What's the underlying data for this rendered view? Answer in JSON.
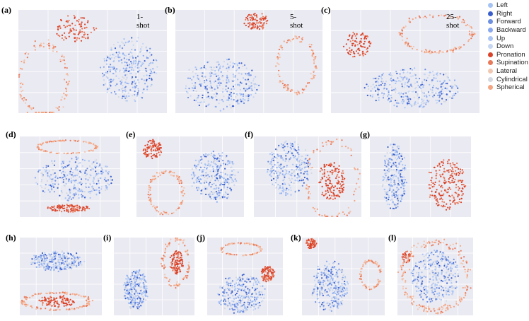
{
  "legend": {
    "items": [
      {
        "label": "Left",
        "color": "#a4c2f4"
      },
      {
        "label": "Right",
        "color": "#3a5fcd"
      },
      {
        "label": "Forward",
        "color": "#6f8fe0"
      },
      {
        "label": "Backward",
        "color": "#8aa8ee"
      },
      {
        "label": "Up",
        "color": "#a9c4f5"
      },
      {
        "label": "Down",
        "color": "#c6d6f2"
      },
      {
        "label": "Pronation",
        "color": "#d9432a"
      },
      {
        "label": "Supination",
        "color": "#e8795a"
      },
      {
        "label": "Lateral",
        "color": "#f2c7b2"
      },
      {
        "label": "Cylindrical",
        "color": "#d4d8e0"
      },
      {
        "label": "Spherical",
        "color": "#f4a582"
      }
    ]
  },
  "chart_data": [
    {
      "type": "scatter",
      "label": "(a)",
      "annotation": "1-shot",
      "clusters": [
        {
          "shape": "blob",
          "cx": 0.75,
          "cy": 0.58,
          "rx": 0.21,
          "ry": 0.33,
          "n": 320,
          "palette": "blue"
        },
        {
          "shape": "blob",
          "cx": 0.38,
          "cy": 0.18,
          "rx": 0.15,
          "ry": 0.14,
          "n": 95,
          "palette": "red"
        },
        {
          "shape": "ring",
          "cx": 0.17,
          "cy": 0.68,
          "rx": 0.16,
          "ry": 0.34,
          "n": 120,
          "palette": "orange",
          "thick": 0.02
        }
      ]
    },
    {
      "type": "scatter",
      "label": "(b)",
      "annotation": "5-shot",
      "clusters": [
        {
          "shape": "blob",
          "cx": 0.31,
          "cy": 0.72,
          "rx": 0.27,
          "ry": 0.26,
          "n": 320,
          "palette": "blue"
        },
        {
          "shape": "blob",
          "cx": 0.55,
          "cy": 0.11,
          "rx": 0.09,
          "ry": 0.09,
          "n": 95,
          "palette": "red"
        },
        {
          "shape": "ring",
          "cx": 0.82,
          "cy": 0.53,
          "rx": 0.13,
          "ry": 0.26,
          "n": 110,
          "palette": "orange",
          "thick": 0.02
        }
      ]
    },
    {
      "type": "scatter",
      "label": "(c)",
      "annotation": "25-shot",
      "clusters": [
        {
          "shape": "blob",
          "cx": 0.56,
          "cy": 0.76,
          "rx": 0.35,
          "ry": 0.2,
          "n": 330,
          "palette": "blue"
        },
        {
          "shape": "blob",
          "cx": 0.18,
          "cy": 0.34,
          "rx": 0.1,
          "ry": 0.13,
          "n": 95,
          "palette": "red"
        },
        {
          "shape": "ring",
          "cx": 0.71,
          "cy": 0.23,
          "rx": 0.24,
          "ry": 0.18,
          "n": 130,
          "palette": "orange",
          "thick": 0.015
        }
      ]
    },
    {
      "type": "scatter",
      "label": "(d)",
      "clusters": [
        {
          "shape": "blob",
          "cx": 0.55,
          "cy": 0.52,
          "rx": 0.42,
          "ry": 0.28,
          "n": 300,
          "palette": "blue"
        },
        {
          "shape": "blob",
          "cx": 0.49,
          "cy": 0.89,
          "rx": 0.23,
          "ry": 0.05,
          "n": 110,
          "palette": "red"
        },
        {
          "shape": "ring",
          "cx": 0.47,
          "cy": 0.13,
          "rx": 0.29,
          "ry": 0.08,
          "n": 110,
          "palette": "orange",
          "thick": 0.012
        }
      ]
    },
    {
      "type": "scatter",
      "label": "(e)",
      "clusters": [
        {
          "shape": "blob",
          "cx": 0.72,
          "cy": 0.5,
          "rx": 0.23,
          "ry": 0.33,
          "n": 300,
          "palette": "blue"
        },
        {
          "shape": "blob",
          "cx": 0.15,
          "cy": 0.16,
          "rx": 0.1,
          "ry": 0.12,
          "n": 90,
          "palette": "red"
        },
        {
          "shape": "ring",
          "cx": 0.28,
          "cy": 0.7,
          "rx": 0.16,
          "ry": 0.26,
          "n": 110,
          "palette": "orange",
          "thick": 0.02
        }
      ]
    },
    {
      "type": "scatter",
      "label": "(f)",
      "clusters": [
        {
          "shape": "blob",
          "cx": 0.33,
          "cy": 0.4,
          "rx": 0.22,
          "ry": 0.36,
          "n": 260,
          "palette": "blue"
        },
        {
          "shape": "blob",
          "cx": 0.73,
          "cy": 0.55,
          "rx": 0.14,
          "ry": 0.25,
          "n": 150,
          "palette": "red"
        },
        {
          "shape": "ring",
          "cx": 0.73,
          "cy": 0.55,
          "rx": 0.24,
          "ry": 0.47,
          "n": 80,
          "palette": "orange",
          "thick": 0.02
        }
      ]
    },
    {
      "type": "scatter",
      "label": "(g)",
      "clusters": [
        {
          "shape": "blob",
          "cx": 0.24,
          "cy": 0.5,
          "rx": 0.13,
          "ry": 0.44,
          "n": 260,
          "palette": "blue"
        },
        {
          "shape": "blob",
          "cx": 0.76,
          "cy": 0.6,
          "rx": 0.2,
          "ry": 0.34,
          "n": 200,
          "palette": "red"
        }
      ]
    },
    {
      "type": "scatter",
      "label": "(h)",
      "clusters": [
        {
          "shape": "blob",
          "cx": 0.45,
          "cy": 0.3,
          "rx": 0.35,
          "ry": 0.14,
          "n": 270,
          "palette": "blue"
        },
        {
          "shape": "blob",
          "cx": 0.45,
          "cy": 0.82,
          "rx": 0.23,
          "ry": 0.08,
          "n": 110,
          "palette": "red"
        },
        {
          "shape": "ring",
          "cx": 0.45,
          "cy": 0.82,
          "rx": 0.41,
          "ry": 0.11,
          "n": 130,
          "palette": "orange",
          "thick": 0.015
        }
      ]
    },
    {
      "type": "scatter",
      "label": "(i)",
      "clusters": [
        {
          "shape": "blob",
          "cx": 0.27,
          "cy": 0.67,
          "rx": 0.16,
          "ry": 0.28,
          "n": 280,
          "palette": "blue"
        },
        {
          "shape": "blob",
          "cx": 0.78,
          "cy": 0.32,
          "rx": 0.1,
          "ry": 0.16,
          "n": 100,
          "palette": "red"
        },
        {
          "shape": "ring",
          "cx": 0.77,
          "cy": 0.32,
          "rx": 0.16,
          "ry": 0.3,
          "n": 90,
          "palette": "orange",
          "thick": 0.02
        }
      ]
    },
    {
      "type": "scatter",
      "label": "(j)",
      "clusters": [
        {
          "shape": "blob",
          "cx": 0.45,
          "cy": 0.73,
          "rx": 0.35,
          "ry": 0.26,
          "n": 300,
          "palette": "blue"
        },
        {
          "shape": "blob",
          "cx": 0.8,
          "cy": 0.47,
          "rx": 0.1,
          "ry": 0.11,
          "n": 95,
          "palette": "red"
        },
        {
          "shape": "ring",
          "cx": 0.45,
          "cy": 0.15,
          "rx": 0.26,
          "ry": 0.08,
          "n": 90,
          "palette": "orange",
          "thick": 0.012
        }
      ]
    },
    {
      "type": "scatter",
      "label": "(k)",
      "clusters": [
        {
          "shape": "blob",
          "cx": 0.33,
          "cy": 0.63,
          "rx": 0.23,
          "ry": 0.34,
          "n": 280,
          "palette": "blue"
        },
        {
          "shape": "blob",
          "cx": 0.11,
          "cy": 0.08,
          "rx": 0.07,
          "ry": 0.07,
          "n": 60,
          "palette": "red"
        },
        {
          "shape": "ring",
          "cx": 0.83,
          "cy": 0.48,
          "rx": 0.12,
          "ry": 0.18,
          "n": 80,
          "palette": "orange",
          "thick": 0.02
        }
      ]
    },
    {
      "type": "scatter",
      "label": "(l)",
      "clusters": [
        {
          "shape": "blob",
          "cx": 0.5,
          "cy": 0.5,
          "rx": 0.34,
          "ry": 0.36,
          "n": 320,
          "palette": "blue"
        },
        {
          "shape": "blob",
          "cx": 0.12,
          "cy": 0.25,
          "rx": 0.06,
          "ry": 0.08,
          "n": 35,
          "palette": "red"
        },
        {
          "shape": "ring",
          "cx": 0.5,
          "cy": 0.5,
          "rx": 0.44,
          "ry": 0.44,
          "n": 190,
          "palette": "orange",
          "thick": 0.02
        }
      ]
    }
  ]
}
